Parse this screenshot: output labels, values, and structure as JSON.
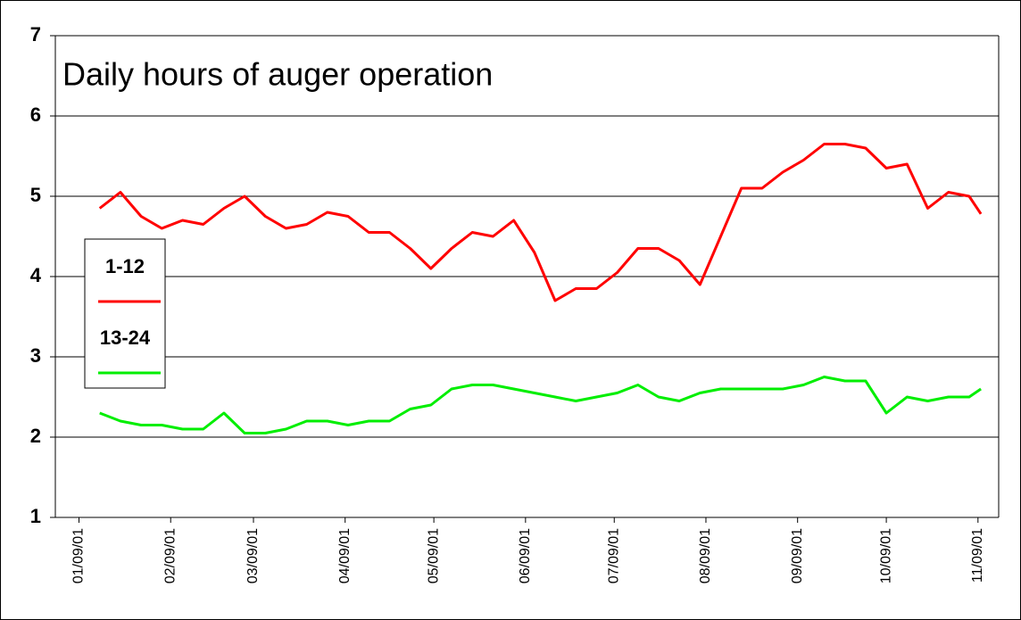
{
  "chart_data": {
    "type": "line",
    "title": "Daily hours of auger operation",
    "x": [
      "01/16/01",
      "01/23/01",
      "01/30/01",
      "02/06/01",
      "02/13/01",
      "02/20/01",
      "02/27/01",
      "03/06/01",
      "03/13/01",
      "03/20/01",
      "03/27/01",
      "04/03/01",
      "04/10/01",
      "04/17/01",
      "04/24/01",
      "05/01/01",
      "05/08/01",
      "05/15/01",
      "05/22/01",
      "05/29/01",
      "06/05/01",
      "06/12/01",
      "06/19/01",
      "06/26/01",
      "07/03/01",
      "07/10/01",
      "07/17/01",
      "07/24/01",
      "07/31/01",
      "08/07/01",
      "08/14/01",
      "08/21/01",
      "08/28/01",
      "09/04/01",
      "09/11/01",
      "09/18/01",
      "09/25/01",
      "10/02/01",
      "10/09/01",
      "10/16/01",
      "10/23/01",
      "10/30/01",
      "11/06/01",
      "11/10/01"
    ],
    "series": [
      {
        "name": "1-12",
        "color": "#ff0000",
        "values": [
          4.85,
          5.05,
          4.75,
          4.6,
          4.7,
          4.65,
          4.85,
          5.0,
          4.75,
          4.6,
          4.65,
          4.8,
          4.75,
          4.55,
          4.55,
          4.35,
          4.1,
          4.35,
          4.55,
          4.5,
          4.7,
          4.3,
          3.7,
          3.85,
          3.85,
          4.05,
          4.35,
          4.35,
          4.2,
          3.9,
          4.5,
          5.1,
          5.1,
          5.3,
          5.45,
          5.65,
          5.65,
          5.6,
          5.35,
          5.4,
          4.85,
          5.05,
          5.0,
          4.78
        ]
      },
      {
        "name": "13-24",
        "color": "#00ee00",
        "values": [
          2.3,
          2.2,
          2.15,
          2.15,
          2.1,
          2.1,
          2.3,
          2.05,
          2.05,
          2.1,
          2.2,
          2.2,
          2.15,
          2.2,
          2.2,
          2.35,
          2.4,
          2.6,
          2.65,
          2.65,
          2.6,
          2.55,
          2.5,
          2.45,
          2.5,
          2.55,
          2.65,
          2.5,
          2.45,
          2.55,
          2.6,
          2.6,
          2.6,
          2.6,
          2.65,
          2.75,
          2.7,
          2.7,
          2.3,
          2.5,
          2.45,
          2.5,
          2.5,
          2.6
        ]
      }
    ],
    "xlim": [
      "01/01/01",
      "11/16/01"
    ],
    "xticks": [
      "01/09/01",
      "02/09/01",
      "03/09/01",
      "04/09/01",
      "05/09/01",
      "06/09/01",
      "07/09/01",
      "08/09/01",
      "09/09/01",
      "10/09/01",
      "11/09/01"
    ],
    "ylim": [
      1,
      7
    ],
    "yticks": [
      1,
      2,
      3,
      4,
      5,
      6,
      7
    ],
    "grid": true,
    "legend": "left"
  }
}
